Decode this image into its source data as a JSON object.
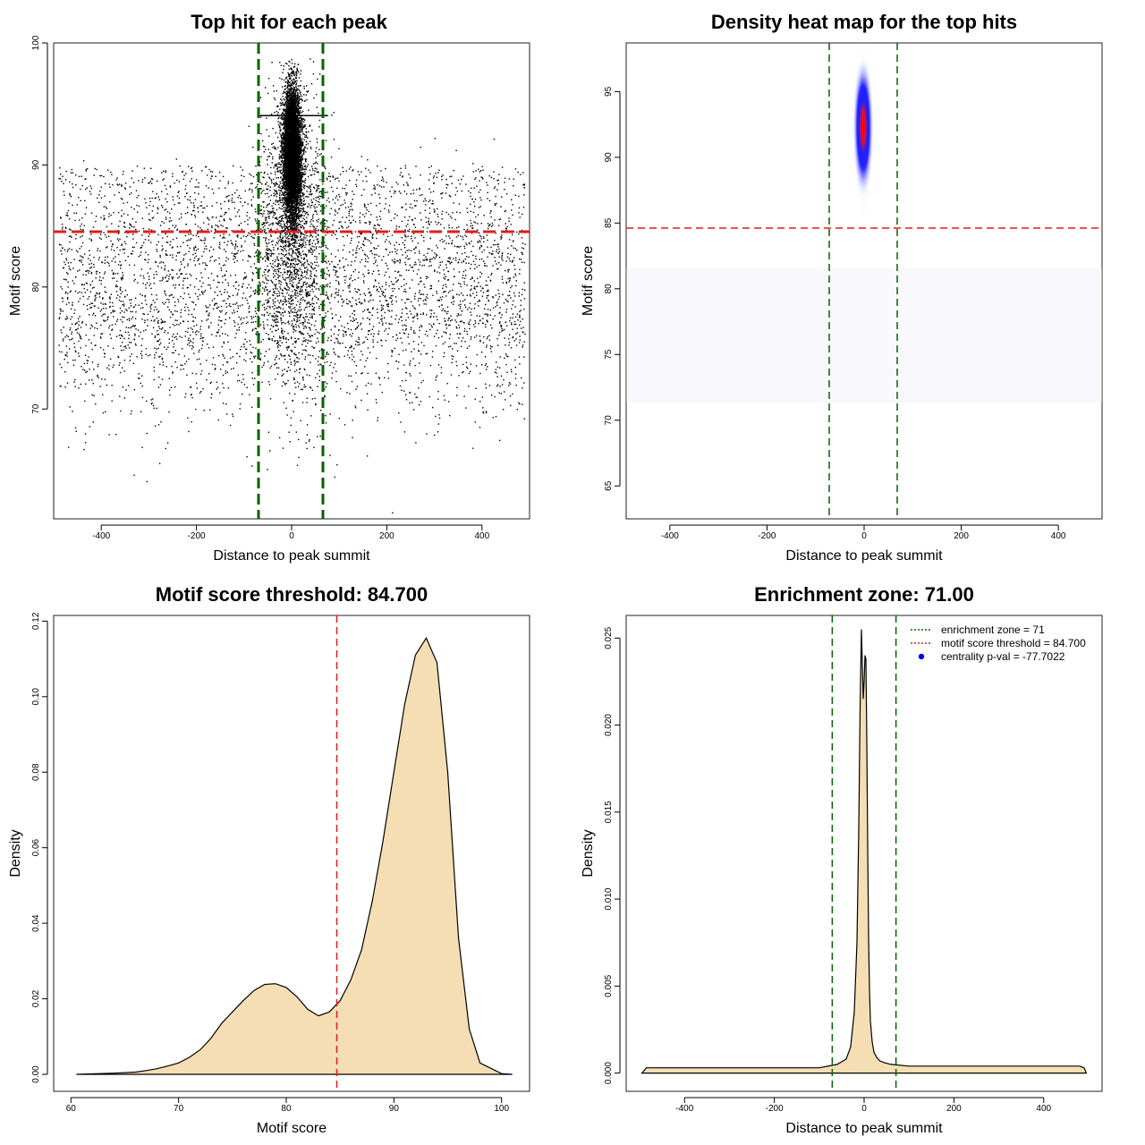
{
  "chart_data": [
    {
      "type": "scatter",
      "title": "Top hit for each peak",
      "xlabel": "Distance to peak summit",
      "ylabel": "Motif score",
      "xlim": [
        -500,
        500
      ],
      "ylim": [
        61,
        100
      ],
      "xticks": [
        -400,
        -200,
        0,
        200,
        400
      ],
      "xtick_labels": [
        "-400",
        "-200",
        "0",
        "200",
        "400"
      ],
      "yticks": [
        70,
        80,
        90,
        100
      ],
      "ytick_labels": [
        "70",
        "80",
        "90",
        "100"
      ],
      "vlines": [
        -71,
        71
      ],
      "hline": 84.7,
      "line_colors": {
        "zone": "#006400",
        "threshold": "#e41a1c"
      },
      "point_color": "#000000",
      "distribution": {
        "background": {
          "n": 4500,
          "x_range": [
            -490,
            490
          ],
          "y_mean": 78.5,
          "y_sd": 4.2
        },
        "central_cluster": {
          "n": 7000,
          "x_sd": 9,
          "y_mean": 91,
          "y_sd": 2.6
        },
        "near_center": {
          "n": 1600,
          "x_sd": 35,
          "y_mean": 85,
          "y_sd": 6
        }
      }
    },
    {
      "type": "heatmap",
      "title": "Density heat map for the top hits",
      "xlabel": "Distance to peak summit",
      "ylabel": "Motif score",
      "xlim": [
        -490,
        490
      ],
      "ylim": [
        62.5,
        98.7
      ],
      "xticks": [
        -400,
        -200,
        0,
        200,
        400
      ],
      "xtick_labels": [
        "-400",
        "-200",
        "0",
        "200",
        "400"
      ],
      "yticks": [
        65,
        70,
        75,
        80,
        85,
        90,
        95
      ],
      "ytick_labels": [
        "65",
        "70",
        "75",
        "80",
        "85",
        "90",
        "95"
      ],
      "vlines": [
        -71,
        71
      ],
      "hline": 84.7,
      "hotspot": {
        "x": 0,
        "y": 92.8
      },
      "colors": {
        "low": "#ffffff",
        "mid": "#0000ff",
        "high": "#ff0000",
        "zone": "#006400",
        "threshold": "#e41a1c"
      }
    },
    {
      "type": "area",
      "title": "Motif score threshold: 84.700",
      "xlabel": "Motif score",
      "ylabel": "Density",
      "xlim": [
        58.4,
        102.6
      ],
      "ylim": [
        -0.0045,
        0.1215
      ],
      "xticks": [
        60,
        70,
        80,
        90,
        100
      ],
      "xtick_labels": [
        "60",
        "70",
        "80",
        "90",
        "100"
      ],
      "yticks": [
        0,
        0.02,
        0.04,
        0.06,
        0.08,
        0.1,
        0.12
      ],
      "ytick_labels": [
        "0.00",
        "0.02",
        "0.04",
        "0.06",
        "0.08",
        "0.10",
        "0.12"
      ],
      "vline": 84.7,
      "fill_color": "#f5deb3",
      "threshold_color": "#e41a1c",
      "x": [
        60.5,
        64,
        66,
        67,
        68,
        69,
        70,
        71,
        72,
        73,
        74,
        75,
        76,
        77,
        78,
        79,
        80,
        81,
        82,
        83,
        84,
        85,
        86,
        87,
        88,
        89,
        90,
        91,
        92,
        93,
        94,
        95,
        96,
        97,
        98,
        100,
        101
      ],
      "y": [
        0,
        0.0003,
        0.0006,
        0.001,
        0.0015,
        0.0022,
        0.003,
        0.0045,
        0.0065,
        0.0095,
        0.0135,
        0.0165,
        0.0195,
        0.0222,
        0.0238,
        0.024,
        0.023,
        0.0205,
        0.0172,
        0.0155,
        0.0165,
        0.0195,
        0.025,
        0.033,
        0.046,
        0.062,
        0.08,
        0.098,
        0.111,
        0.1155,
        0.109,
        0.08,
        0.036,
        0.012,
        0.003,
        0.0002,
        0
      ]
    },
    {
      "type": "area",
      "title": "Enrichment zone: 71.00",
      "xlabel": "Distance to peak summit",
      "ylabel": "Density",
      "xlim": [
        -530,
        530
      ],
      "ylim": [
        -0.00105,
        0.0263
      ],
      "xticks": [
        -400,
        -200,
        0,
        200,
        400
      ],
      "xtick_labels": [
        "-400",
        "-200",
        "0",
        "200",
        "400"
      ],
      "yticks": [
        0,
        0.005,
        0.01,
        0.015,
        0.02,
        0.025
      ],
      "ytick_labels": [
        "0.000",
        "0.005",
        "0.010",
        "0.015",
        "0.020",
        "0.025"
      ],
      "vlines": [
        -71,
        71
      ],
      "fill_color": "#f5deb3",
      "zone_color": "#006400",
      "x": [
        -495,
        -485,
        -100,
        -60,
        -40,
        -30,
        -22,
        -16,
        -12,
        -9,
        -6,
        -4,
        -2,
        0,
        2,
        4,
        6,
        8,
        10,
        12,
        14,
        18,
        22,
        28,
        35,
        45,
        60,
        100,
        480,
        490,
        495
      ],
      "y": [
        0,
        0.0003,
        0.0003,
        0.0005,
        0.0008,
        0.0015,
        0.0035,
        0.0075,
        0.014,
        0.021,
        0.0255,
        0.0235,
        0.0215,
        0.0225,
        0.024,
        0.0238,
        0.019,
        0.013,
        0.0078,
        0.0048,
        0.003,
        0.0018,
        0.0012,
        0.0009,
        0.0007,
        0.0006,
        0.0005,
        0.0004,
        0.0004,
        0.0003,
        0
      ],
      "legend": {
        "position": "top-right",
        "entries": [
          {
            "label": "enrichment zone = 71",
            "color": "#006400",
            "kind": "dotted-line"
          },
          {
            "label": "motif score threshold = 84.700",
            "color": "#e41a1c",
            "kind": "dotted-line"
          },
          {
            "label": "centrality p-val = -77.7022",
            "color": "#0000ff",
            "kind": "point"
          }
        ]
      }
    }
  ]
}
